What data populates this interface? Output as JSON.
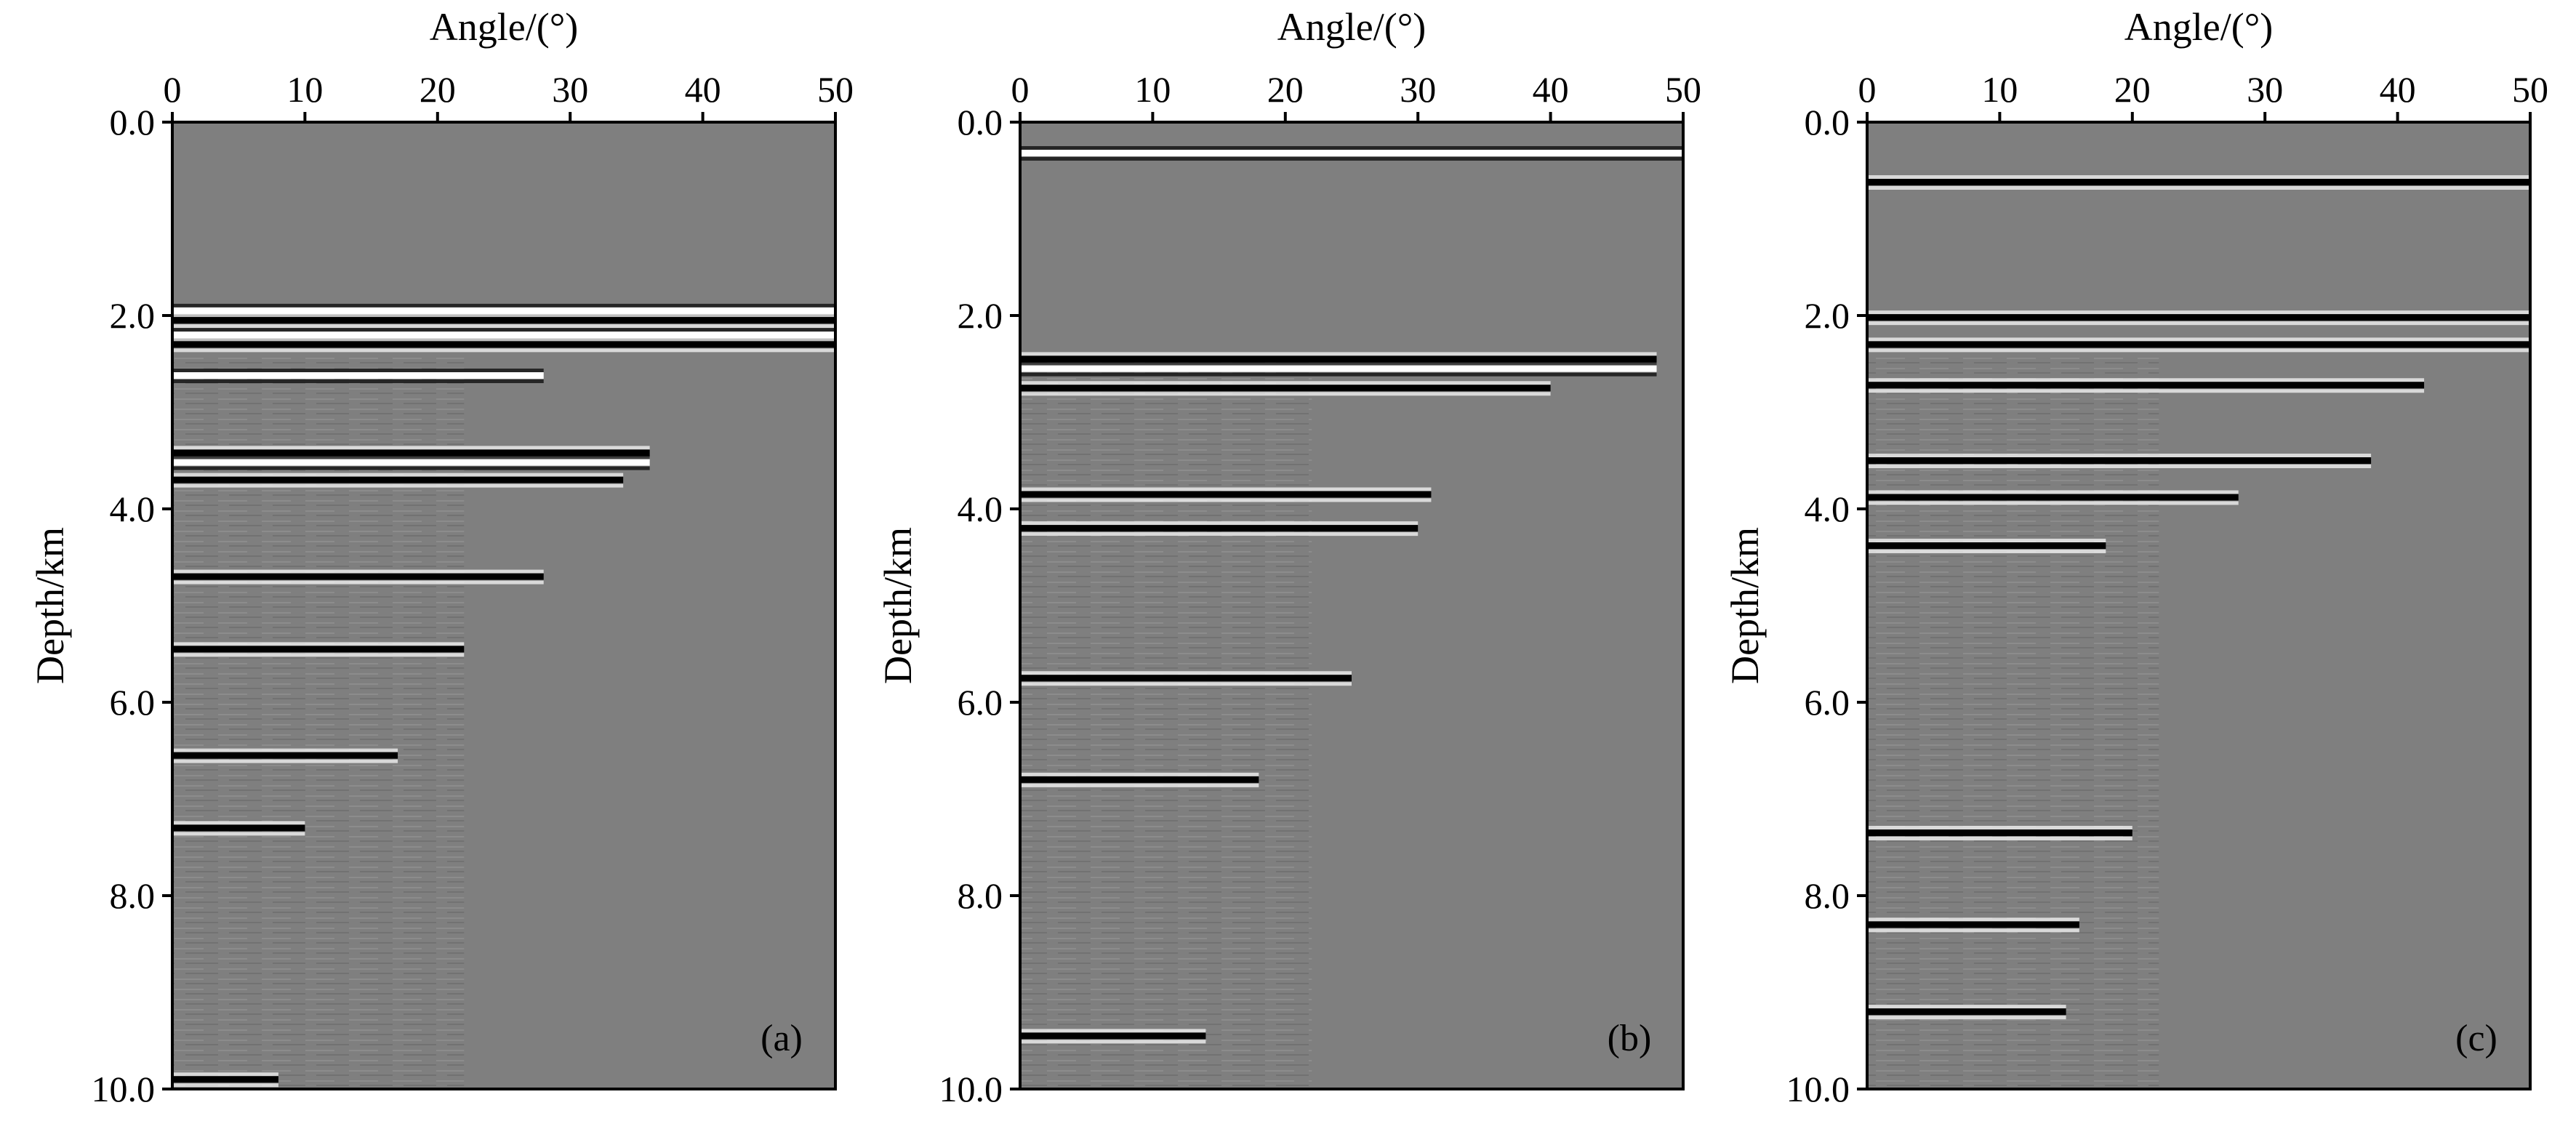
{
  "chart_data": [
    {
      "type": "heatmap",
      "panel_label": "(a)",
      "xlabel": "Angle/(°)",
      "ylabel": "Depth/km",
      "xlim": [
        0,
        50
      ],
      "ylim": [
        10.0,
        0.0
      ],
      "x_ticks": [
        "0",
        "10",
        "20",
        "30",
        "40",
        "50"
      ],
      "y_ticks": [
        "0.0",
        "2.0",
        "4.0",
        "6.0",
        "8.0",
        "10.0"
      ],
      "background_color": "#7f7f7f",
      "reflectors": [
        {
          "depth": 1.95,
          "max_angle": 50,
          "polarity": "white"
        },
        {
          "depth": 2.05,
          "max_angle": 50,
          "polarity": "black"
        },
        {
          "depth": 2.2,
          "max_angle": 50,
          "polarity": "white"
        },
        {
          "depth": 2.3,
          "max_angle": 50,
          "polarity": "black"
        },
        {
          "depth": 2.62,
          "max_angle": 28,
          "polarity": "white"
        },
        {
          "depth": 3.42,
          "max_angle": 36,
          "polarity": "black"
        },
        {
          "depth": 3.52,
          "max_angle": 36,
          "polarity": "white"
        },
        {
          "depth": 3.7,
          "max_angle": 34,
          "polarity": "black"
        },
        {
          "depth": 4.7,
          "max_angle": 28,
          "polarity": "black"
        },
        {
          "depth": 5.45,
          "max_angle": 22,
          "polarity": "black"
        },
        {
          "depth": 6.55,
          "max_angle": 17,
          "polarity": "black"
        },
        {
          "depth": 7.3,
          "max_angle": 10,
          "polarity": "black"
        },
        {
          "depth": 9.9,
          "max_angle": 8,
          "polarity": "black"
        }
      ]
    },
    {
      "type": "heatmap",
      "panel_label": "(b)",
      "xlabel": "Angle/(°)",
      "ylabel": "Depth/km",
      "xlim": [
        0,
        50
      ],
      "ylim": [
        10.0,
        0.0
      ],
      "x_ticks": [
        "0",
        "10",
        "20",
        "30",
        "40",
        "50"
      ],
      "y_ticks": [
        "0.0",
        "2.0",
        "4.0",
        "6.0",
        "8.0",
        "10.0"
      ],
      "background_color": "#7f7f7f",
      "reflectors": [
        {
          "depth": 0.32,
          "max_angle": 50,
          "polarity": "white"
        },
        {
          "depth": 2.45,
          "max_angle": 48,
          "polarity": "black"
        },
        {
          "depth": 2.55,
          "max_angle": 48,
          "polarity": "white"
        },
        {
          "depth": 2.75,
          "max_angle": 40,
          "polarity": "black"
        },
        {
          "depth": 3.85,
          "max_angle": 31,
          "polarity": "black"
        },
        {
          "depth": 4.2,
          "max_angle": 30,
          "polarity": "black"
        },
        {
          "depth": 5.75,
          "max_angle": 25,
          "polarity": "black"
        },
        {
          "depth": 6.8,
          "max_angle": 18,
          "polarity": "black"
        },
        {
          "depth": 9.45,
          "max_angle": 14,
          "polarity": "black"
        }
      ]
    },
    {
      "type": "heatmap",
      "panel_label": "(c)",
      "xlabel": "Angle/(°)",
      "ylabel": "Depth/km",
      "xlim": [
        0,
        50
      ],
      "ylim": [
        10.0,
        0.0
      ],
      "x_ticks": [
        "0",
        "10",
        "20",
        "30",
        "40",
        "50"
      ],
      "y_ticks": [
        "0.0",
        "2.0",
        "4.0",
        "6.0",
        "8.0",
        "10.0"
      ],
      "background_color": "#7f7f7f",
      "reflectors": [
        {
          "depth": 0.62,
          "max_angle": 50,
          "polarity": "black"
        },
        {
          "depth": 2.02,
          "max_angle": 50,
          "polarity": "black"
        },
        {
          "depth": 2.3,
          "max_angle": 50,
          "polarity": "black"
        },
        {
          "depth": 2.72,
          "max_angle": 42,
          "polarity": "black"
        },
        {
          "depth": 3.5,
          "max_angle": 38,
          "polarity": "black"
        },
        {
          "depth": 3.88,
          "max_angle": 28,
          "polarity": "black"
        },
        {
          "depth": 4.38,
          "max_angle": 18,
          "polarity": "black"
        },
        {
          "depth": 7.35,
          "max_angle": 20,
          "polarity": "black"
        },
        {
          "depth": 8.3,
          "max_angle": 16,
          "polarity": "black"
        },
        {
          "depth": 9.2,
          "max_angle": 15,
          "polarity": "black"
        }
      ]
    }
  ]
}
